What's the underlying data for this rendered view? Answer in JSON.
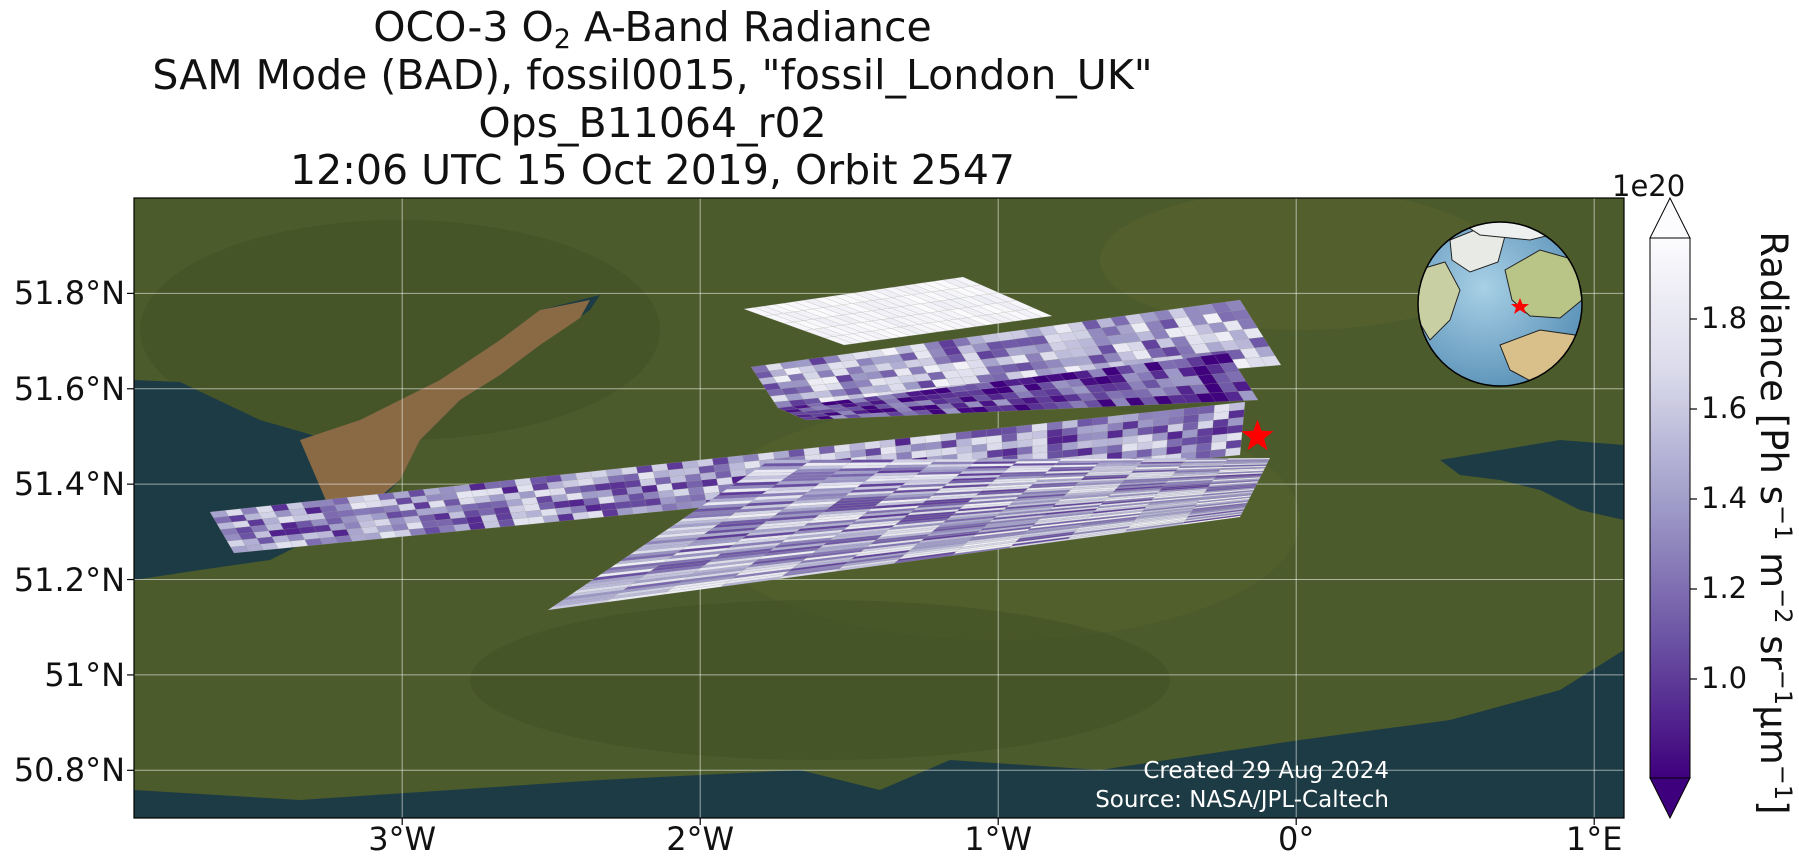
{
  "title": {
    "line1_pre": "OCO-3 O",
    "line1_sub": "2",
    "line1_post": " A-Band Radiance",
    "line2": "SAM Mode (BAD), fossil0015, \"fossil_London_UK\"",
    "line3": "Ops_B11064_r02",
    "line4": "12:06 UTC 15 Oct 2019, Orbit 2547"
  },
  "map": {
    "extent": {
      "lon_min": -3.9,
      "lon_max": 1.1,
      "lat_min": 50.7,
      "lat_max": 52.0
    },
    "lat_ticks": [
      {
        "value": 51.8,
        "label": "51.8°N"
      },
      {
        "value": 51.6,
        "label": "51.6°N"
      },
      {
        "value": 51.4,
        "label": "51.4°N"
      },
      {
        "value": 51.2,
        "label": "51.2°N"
      },
      {
        "value": 51.0,
        "label": "51°N"
      },
      {
        "value": 50.8,
        "label": "50.8°N"
      }
    ],
    "lon_ticks": [
      {
        "value": -3,
        "label": "3°W"
      },
      {
        "value": -2,
        "label": "2°W"
      },
      {
        "value": -1,
        "label": "1°W"
      },
      {
        "value": 0,
        "label": "0°"
      },
      {
        "value": 1,
        "label": "1°E"
      }
    ],
    "target_marker": {
      "lon": -0.13,
      "lat": 51.5,
      "color": "#ff0000"
    },
    "background_colors": {
      "land": "#4a5a2a",
      "sea": "#1d3b44",
      "estuary": "#8a6a45"
    }
  },
  "swaths": [
    {
      "name": "swath-1",
      "mean_radiance": 1.92,
      "variability": 0.06
    },
    {
      "name": "swath-2",
      "mean_radiance": 1.45,
      "variability": 0.45
    },
    {
      "name": "swath-3",
      "mean_radiance": 1.05,
      "variability": 0.35
    },
    {
      "name": "swath-4",
      "mean_radiance": 1.35,
      "variability": 0.45
    },
    {
      "name": "swath-5",
      "mean_radiance": 1.45,
      "variability": 0.45
    }
  ],
  "colorbar": {
    "label_pre": "Radiance [Ph s",
    "sup1": "−1",
    "mid1": " m",
    "sup2": "−2",
    "mid2": " sr",
    "sup3": "−1",
    "mid3": "μm",
    "sup4": "−1",
    "label_post": "]",
    "multiplier": "1e20",
    "range": [
      0.78,
      1.98
    ],
    "ticks": [
      {
        "value": 1.0,
        "label": "1.0"
      },
      {
        "value": 1.2,
        "label": "1.2"
      },
      {
        "value": 1.4,
        "label": "1.4"
      },
      {
        "value": 1.6,
        "label": "1.6"
      },
      {
        "value": 1.8,
        "label": "1.8"
      }
    ],
    "colormap": "Purples_r",
    "extend": "both"
  },
  "credits": {
    "created": "Created 29 Aug 2024",
    "source": "Source: NASA/JPL-Caltech"
  }
}
